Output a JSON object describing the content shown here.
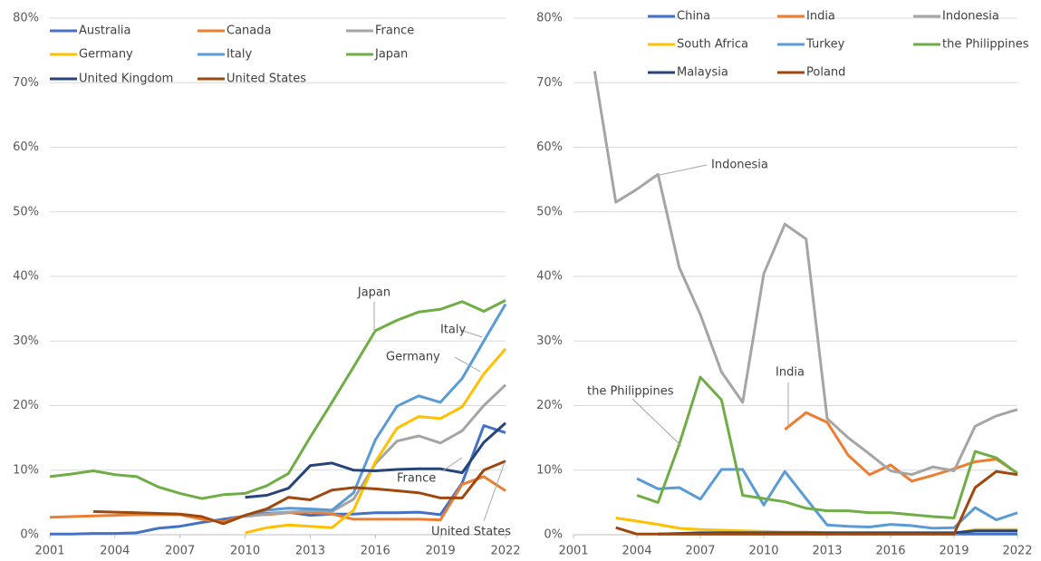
{
  "chart_data": [
    {
      "type": "line",
      "x": [
        2001,
        2002,
        2003,
        2004,
        2005,
        2006,
        2007,
        2008,
        2009,
        2010,
        2011,
        2012,
        2013,
        2014,
        2015,
        2016,
        2017,
        2018,
        2019,
        2020,
        2021,
        2022
      ],
      "xlim": [
        2001,
        2022
      ],
      "xticks": [
        2001,
        2004,
        2007,
        2010,
        2013,
        2016,
        2019,
        2022
      ],
      "ylim": [
        0,
        80
      ],
      "yticks": [
        {
          "value": 0,
          "label": "0%"
        },
        {
          "value": 10,
          "label": "10%"
        },
        {
          "value": 20,
          "label": "20%"
        },
        {
          "value": 30,
          "label": "30%"
        },
        {
          "value": 40,
          "label": "40%"
        },
        {
          "value": 50,
          "label": "50%"
        },
        {
          "value": 60,
          "label": "60%"
        },
        {
          "value": 70,
          "label": "70%"
        },
        {
          "value": 80,
          "label": "80%"
        }
      ],
      "grid": true,
      "series": [
        {
          "name": "Australia",
          "color": "#4472c4",
          "values": [
            0.1,
            0.1,
            0.2,
            0.2,
            0.3,
            1.0,
            1.3,
            1.9,
            2.4,
            2.9,
            3.3,
            3.5,
            3.0,
            3.2,
            3.2,
            3.4,
            3.4,
            3.5,
            3.1,
            8.0,
            16.9,
            15.8
          ]
        },
        {
          "name": "Canada",
          "color": "#ed7d31",
          "values": [
            2.7,
            2.8,
            2.9,
            3.0,
            3.1,
            3.1,
            3.1,
            2.4,
            2.0,
            3.0,
            3.1,
            3.4,
            3.5,
            3.2,
            2.4,
            2.4,
            2.4,
            2.4,
            2.3,
            7.8,
            9.0,
            6.8
          ]
        },
        {
          "name": "France",
          "color": "#a5a5a5",
          "values": [
            null,
            null,
            null,
            null,
            null,
            null,
            null,
            null,
            null,
            2.8,
            3.2,
            3.5,
            3.7,
            3.6,
            5.5,
            11.0,
            14.5,
            15.3,
            14.2,
            16.1,
            20.0,
            23.2
          ]
        },
        {
          "name": "Germany",
          "color": "#ffc000",
          "values": [
            null,
            null,
            null,
            null,
            null,
            null,
            null,
            null,
            null,
            0.3,
            1.1,
            1.5,
            1.3,
            1.1,
            3.8,
            11.3,
            16.5,
            18.3,
            18.0,
            19.8,
            24.9,
            28.8
          ]
        },
        {
          "name": "Italy",
          "color": "#5b9bd5",
          "values": [
            null,
            null,
            null,
            null,
            null,
            null,
            null,
            null,
            null,
            3.0,
            3.8,
            4.1,
            4.0,
            3.8,
            6.5,
            14.7,
            19.9,
            21.5,
            20.5,
            24.2,
            30.0,
            35.7
          ]
        },
        {
          "name": "Japan",
          "color": "#70ad47",
          "values": [
            9.0,
            9.4,
            9.9,
            9.3,
            9.0,
            7.4,
            6.4,
            5.6,
            6.2,
            6.4,
            7.6,
            9.5,
            15.1,
            20.5,
            26.0,
            31.6,
            33.2,
            34.5,
            34.9,
            36.1,
            34.6,
            36.3
          ]
        },
        {
          "name": "United Kingdom",
          "color": "#264478",
          "values": [
            null,
            null,
            null,
            null,
            null,
            null,
            null,
            null,
            null,
            5.8,
            6.1,
            7.2,
            10.7,
            11.1,
            10.0,
            9.9,
            10.1,
            10.2,
            10.2,
            9.6,
            14.3,
            17.3
          ]
        },
        {
          "name": "United States",
          "color": "#9e480e",
          "values": [
            null,
            null,
            3.6,
            3.5,
            3.4,
            3.3,
            3.2,
            2.8,
            1.7,
            3.0,
            4.0,
            5.8,
            5.4,
            6.9,
            7.3,
            7.1,
            6.8,
            6.5,
            5.7,
            5.7,
            10.0,
            11.4
          ]
        }
      ],
      "annotations": [
        "Japan",
        "Italy",
        "Germany",
        "France",
        "United States"
      ]
    },
    {
      "type": "line",
      "x": [
        2001,
        2002,
        2003,
        2004,
        2005,
        2006,
        2007,
        2008,
        2009,
        2010,
        2011,
        2012,
        2013,
        2014,
        2015,
        2016,
        2017,
        2018,
        2019,
        2020,
        2021,
        2022
      ],
      "xlim": [
        2001,
        2022
      ],
      "xticks": [
        2001,
        2004,
        2007,
        2010,
        2013,
        2016,
        2019,
        2022
      ],
      "ylim": [
        0,
        80
      ],
      "yticks": [
        {
          "value": 0,
          "label": "0%"
        },
        {
          "value": 10,
          "label": "10%"
        },
        {
          "value": 20,
          "label": "20%"
        },
        {
          "value": 30,
          "label": "30%"
        },
        {
          "value": 40,
          "label": "40%"
        },
        {
          "value": 50,
          "label": "50%"
        },
        {
          "value": 60,
          "label": "60%"
        },
        {
          "value": 70,
          "label": "70%"
        },
        {
          "value": 80,
          "label": "80%"
        }
      ],
      "grid": true,
      "series": [
        {
          "name": "China",
          "color": "#4472c4",
          "values": [
            null,
            null,
            null,
            null,
            0.1,
            0.1,
            0.1,
            0.1,
            0.1,
            0.1,
            0.1,
            0.1,
            0.1,
            0.1,
            0.1,
            0.1,
            0.1,
            0.1,
            0.1,
            0.1,
            0.1,
            0.1
          ]
        },
        {
          "name": "India",
          "color": "#ed7d31",
          "values": [
            null,
            null,
            null,
            null,
            null,
            null,
            null,
            null,
            null,
            null,
            16.3,
            18.9,
            17.4,
            12.3,
            9.3,
            10.8,
            8.3,
            9.2,
            10.2,
            11.3,
            11.7,
            9.5
          ]
        },
        {
          "name": "Indonesia",
          "color": "#a5a5a5",
          "values": [
            null,
            71.8,
            51.5,
            53.5,
            55.8,
            41.4,
            34.1,
            25.2,
            20.5,
            40.4,
            48.1,
            45.8,
            18.0,
            15.0,
            12.5,
            9.9,
            9.3,
            10.5,
            9.9,
            16.8,
            18.4,
            19.4
          ]
        },
        {
          "name": "South Africa",
          "color": "#ffc000",
          "values": [
            null,
            null,
            2.6,
            2.1,
            1.6,
            1.0,
            0.8,
            0.7,
            0.6,
            0.5,
            0.4,
            0.4,
            0.3,
            0.3,
            0.3,
            0.3,
            0.2,
            0.2,
            0.2,
            0.8,
            0.8,
            0.8
          ]
        },
        {
          "name": "Turkey",
          "color": "#5b9bd5",
          "values": [
            null,
            null,
            null,
            8.7,
            7.1,
            7.3,
            5.5,
            10.1,
            10.1,
            4.6,
            9.8,
            5.6,
            1.5,
            1.3,
            1.2,
            1.6,
            1.4,
            1.0,
            1.1,
            4.2,
            2.3,
            3.4
          ]
        },
        {
          "name": "the Philippines",
          "color": "#70ad47",
          "values": [
            null,
            null,
            null,
            6.1,
            5.0,
            14.0,
            24.4,
            20.9,
            6.1,
            5.6,
            5.1,
            4.1,
            3.7,
            3.7,
            3.4,
            3.4,
            3.1,
            2.8,
            2.6,
            12.9,
            11.9,
            9.5
          ]
        },
        {
          "name": "Malaysia",
          "color": "#264478",
          "values": [
            null,
            null,
            null,
            null,
            0.1,
            0.2,
            0.3,
            0.3,
            0.3,
            0.3,
            0.3,
            0.3,
            0.3,
            0.3,
            0.3,
            0.3,
            0.3,
            0.3,
            0.3,
            0.6,
            0.6,
            0.6
          ]
        },
        {
          "name": "Poland",
          "color": "#9e480e",
          "values": [
            null,
            null,
            1.1,
            0.1,
            0.1,
            0.1,
            0.1,
            0.1,
            0.1,
            0.1,
            0.1,
            0.1,
            0.1,
            0.1,
            0.1,
            0.1,
            0.1,
            0.1,
            0.1,
            7.3,
            9.8,
            9.3
          ]
        }
      ],
      "annotations": [
        "Indonesia",
        "India",
        "the Philippines"
      ]
    }
  ]
}
